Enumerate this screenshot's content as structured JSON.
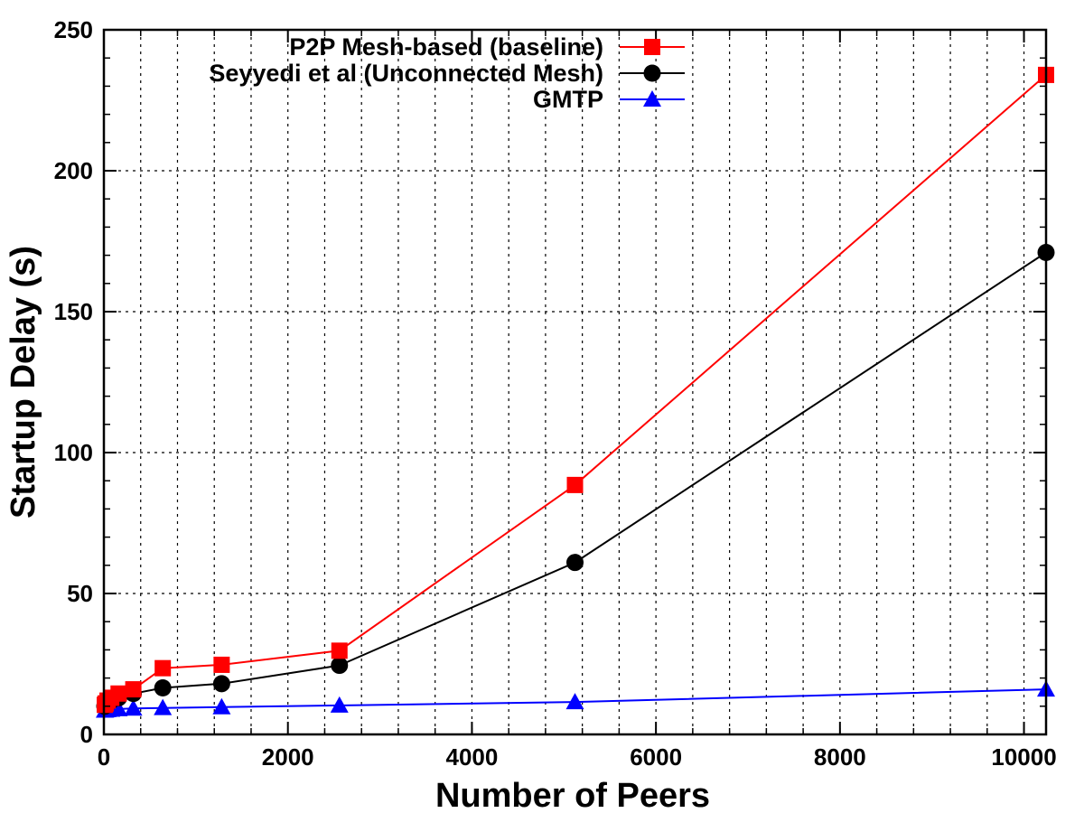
{
  "chart_data": {
    "type": "line",
    "title": "",
    "xlabel": "Number of Peers",
    "ylabel": "Startup Delay (s)",
    "xlim": [
      0,
      10240
    ],
    "ylim": [
      0,
      250
    ],
    "xticks": [
      0,
      2000,
      4000,
      6000,
      8000,
      10000
    ],
    "yticks": [
      0,
      50,
      100,
      150,
      200,
      250
    ],
    "grid": true,
    "legend_position": "top-right",
    "x": [
      10,
      20,
      40,
      80,
      160,
      320,
      640,
      1280,
      2560,
      5120,
      10240
    ],
    "series": [
      {
        "name": "P2P Mesh-based (baseline)",
        "color": "#ff0000",
        "marker": "square",
        "values": [
          10.5,
          11,
          12,
          13,
          14.5,
          16,
          23.5,
          24.7,
          29.7,
          88.5,
          234
        ]
      },
      {
        "name": "Seyyedi et al (Unconnected Mesh)",
        "color": "#000000",
        "marker": "circle",
        "values": [
          10,
          10.5,
          11,
          12,
          13,
          14.5,
          16.5,
          18,
          24.5,
          61,
          171
        ]
      },
      {
        "name": "GMTP",
        "color": "#0000ff",
        "marker": "triangle",
        "values": [
          8.5,
          8.6,
          8.7,
          8.8,
          9,
          9.2,
          9.4,
          9.7,
          10.3,
          11.5,
          16
        ]
      }
    ]
  }
}
